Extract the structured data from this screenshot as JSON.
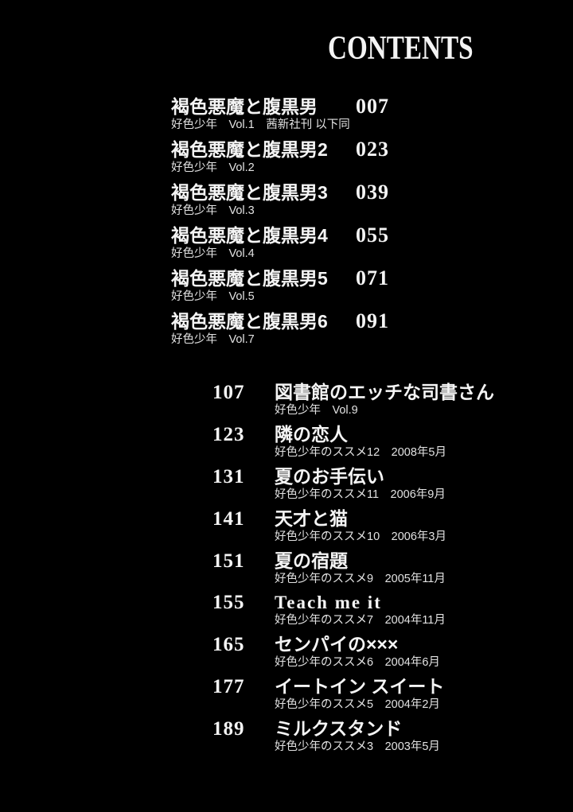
{
  "page": {
    "title": "CONTENTS"
  },
  "colors": {
    "background": "#000000",
    "text": "#f4f4f4",
    "subtext": "#e2e2e2"
  },
  "toc": {
    "section1": {
      "items": [
        {
          "title": "褐色悪魔と腹黒男",
          "page": "007",
          "note": "好色少年　Vol.1　茜新社刊 以下同"
        },
        {
          "title": "褐色悪魔と腹黒男2",
          "page": "023",
          "note": "好色少年　Vol.2"
        },
        {
          "title": "褐色悪魔と腹黒男3",
          "page": "039",
          "note": "好色少年　Vol.3"
        },
        {
          "title": "褐色悪魔と腹黒男4",
          "page": "055",
          "note": "好色少年　Vol.4"
        },
        {
          "title": "褐色悪魔と腹黒男5",
          "page": "071",
          "note": "好色少年　Vol.5"
        },
        {
          "title": "褐色悪魔と腹黒男6",
          "page": "091",
          "note": "好色少年　Vol.7"
        }
      ]
    },
    "section2": {
      "items": [
        {
          "page": "107",
          "title": "図書館のエッチな司書さん",
          "note": "好色少年　Vol.9"
        },
        {
          "page": "123",
          "title": "隣の恋人",
          "note": "好色少年のススメ12　2008年5月"
        },
        {
          "page": "131",
          "title": "夏のお手伝い",
          "note": "好色少年のススメ11　2006年9月"
        },
        {
          "page": "141",
          "title": "天才と猫",
          "note": "好色少年のススメ10　2006年3月"
        },
        {
          "page": "151",
          "title": "夏の宿題",
          "note": "好色少年のススメ9　2005年11月"
        },
        {
          "page": "155",
          "title": "Teach me it",
          "note": "好色少年のススメ7　2004年11月"
        },
        {
          "page": "165",
          "title": "センパイの×××",
          "note": "好色少年のススメ6　2004年6月"
        },
        {
          "page": "177",
          "title": "イートイン スイート",
          "note": "好色少年のススメ5　2004年2月"
        },
        {
          "page": "189",
          "title": "ミルクスタンド",
          "note": "好色少年のススメ3　2003年5月"
        }
      ]
    }
  }
}
